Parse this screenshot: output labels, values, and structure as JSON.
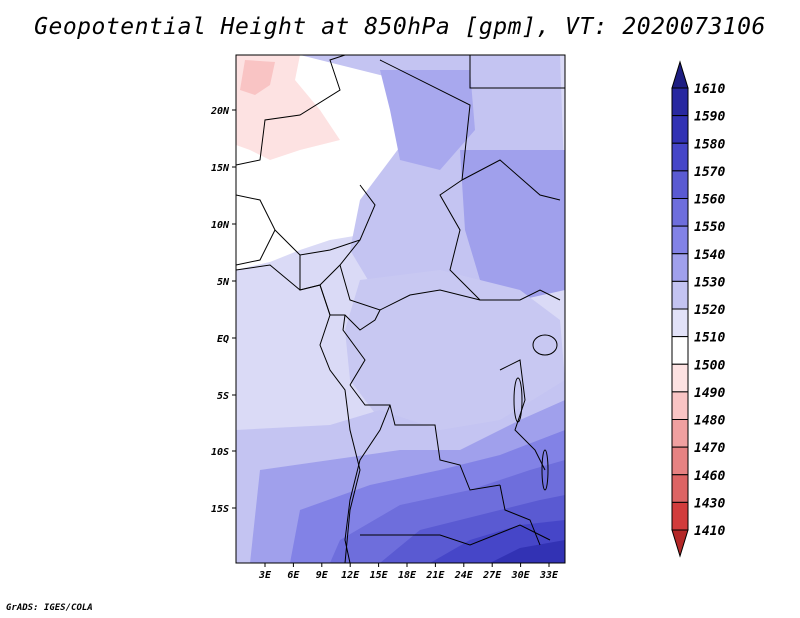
{
  "title": "Geopotential Height at 850hPa [gpm], VT: 2020073106",
  "credit": "GrADS: IGES/COLA",
  "map": {
    "lat_ticks": [
      "20N",
      "15N",
      "10N",
      "5N",
      "EQ",
      "5S",
      "10S",
      "15S"
    ],
    "lon_ticks": [
      "3E",
      "6E",
      "9E",
      "12E",
      "15E",
      "18E",
      "21E",
      "24E",
      "27E",
      "30E",
      "33E"
    ]
  },
  "colorbar": {
    "labels": [
      "1610",
      "1590",
      "1580",
      "1570",
      "1560",
      "1550",
      "1540",
      "1530",
      "1520",
      "1510",
      "1500",
      "1490",
      "1480",
      "1470",
      "1460",
      "1430",
      "1410"
    ],
    "colors": [
      "#1e1e82",
      "#2828a0",
      "#3232b4",
      "#4646c8",
      "#5a5ad2",
      "#6e6edc",
      "#8282e6",
      "#a0a0ec",
      "#c4c4f2",
      "#e2e2f8",
      "#ffffff",
      "#fde2e2",
      "#f9c4c4",
      "#f0a0a0",
      "#e68282",
      "#dc6464",
      "#d23c3c",
      "#b42828"
    ]
  }
}
